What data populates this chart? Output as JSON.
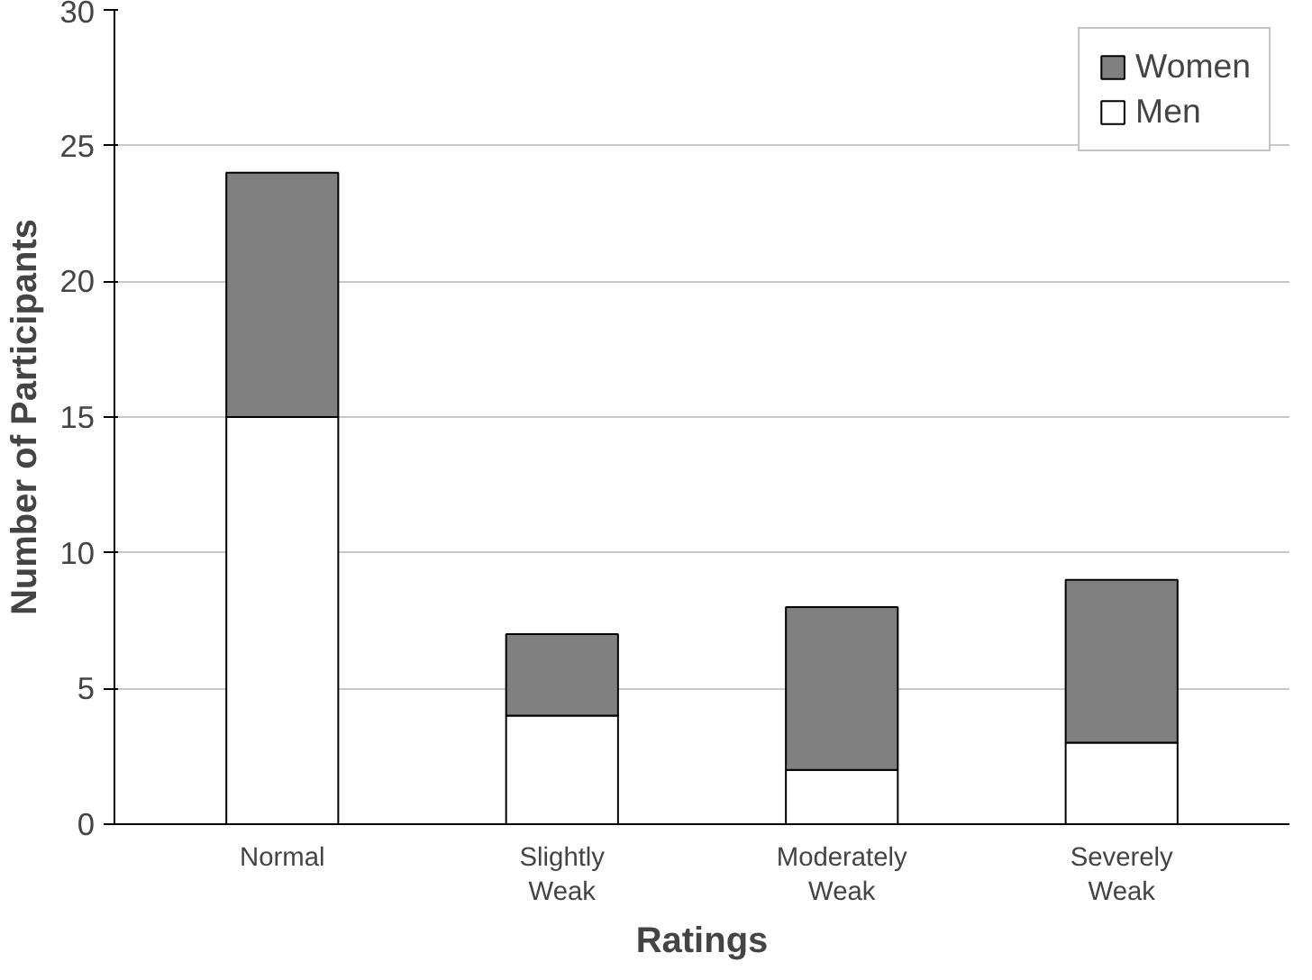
{
  "chart_data": {
    "type": "bar",
    "stacked": true,
    "xlabel": "Ratings",
    "ylabel": "Number of Participants",
    "categories": [
      "Normal",
      "Slightly\nWeak",
      "Moderately\nWeak",
      "Severely\nWeak"
    ],
    "series": [
      {
        "name": "Men",
        "color": "#ffffff",
        "values": [
          15,
          4,
          2,
          3
        ]
      },
      {
        "name": "Women",
        "color": "#808080",
        "values": [
          9,
          3,
          6,
          6
        ]
      }
    ],
    "ylim": [
      0,
      30
    ],
    "yticks": [
      0,
      5,
      10,
      15,
      20,
      25,
      30
    ],
    "grid": "y",
    "legend": "top right"
  }
}
